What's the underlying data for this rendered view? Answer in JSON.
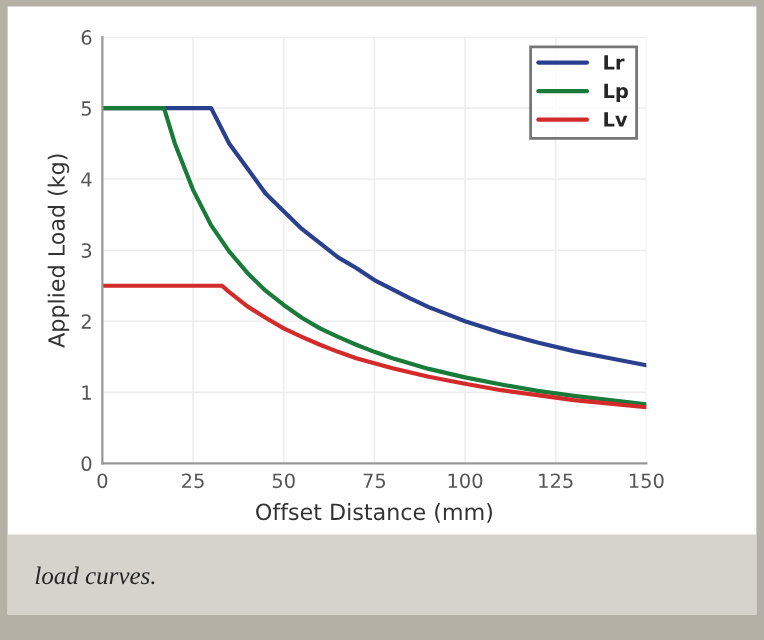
{
  "chart_data": {
    "type": "line",
    "xlabel": "Offset Distance (mm)",
    "ylabel": "Applied Load (kg)",
    "xlim": [
      0,
      150
    ],
    "xticks": [
      0,
      25,
      50,
      75,
      100,
      125,
      150
    ],
    "ylim": [
      0,
      6
    ],
    "yticks": [
      0,
      1,
      2,
      3,
      4,
      5,
      6
    ],
    "grid": true,
    "legend": "top right",
    "marker": "none",
    "line_style": "solid",
    "annotations": [
      "load curves."
    ],
    "series": [
      {
        "name": "Lr",
        "color": "#2b3f8f",
        "x": [
          0,
          30,
          35,
          40,
          45,
          50,
          55,
          60,
          65,
          70,
          75,
          80,
          85,
          90,
          95,
          100,
          110,
          120,
          130,
          140,
          150
        ],
        "values": [
          5,
          5,
          4.5,
          4.15,
          3.8,
          3.55,
          3.3,
          3.1,
          2.9,
          2.75,
          2.58,
          2.45,
          2.32,
          2.2,
          2.1,
          2.0,
          1.84,
          1.7,
          1.58,
          1.48,
          1.38
        ]
      },
      {
        "name": "Lp",
        "color": "#1a7a3a",
        "x": [
          0,
          17,
          20,
          25,
          30,
          35,
          40,
          45,
          50,
          55,
          60,
          65,
          70,
          75,
          80,
          90,
          100,
          110,
          120,
          130,
          140,
          150
        ],
        "values": [
          5,
          5,
          4.5,
          3.85,
          3.35,
          2.98,
          2.68,
          2.43,
          2.23,
          2.05,
          1.9,
          1.78,
          1.67,
          1.57,
          1.48,
          1.33,
          1.21,
          1.11,
          1.02,
          0.95,
          0.89,
          0.83
        ]
      },
      {
        "name": "Lv",
        "color": "#d42a2a",
        "x": [
          0,
          33,
          35,
          40,
          45,
          50,
          55,
          60,
          65,
          70,
          75,
          80,
          90,
          100,
          110,
          120,
          130,
          140,
          150
        ],
        "values": [
          2.5,
          2.5,
          2.41,
          2.21,
          2.05,
          1.9,
          1.78,
          1.67,
          1.57,
          1.48,
          1.41,
          1.34,
          1.22,
          1.12,
          1.03,
          0.96,
          0.89,
          0.84,
          0.79
        ]
      }
    ]
  }
}
